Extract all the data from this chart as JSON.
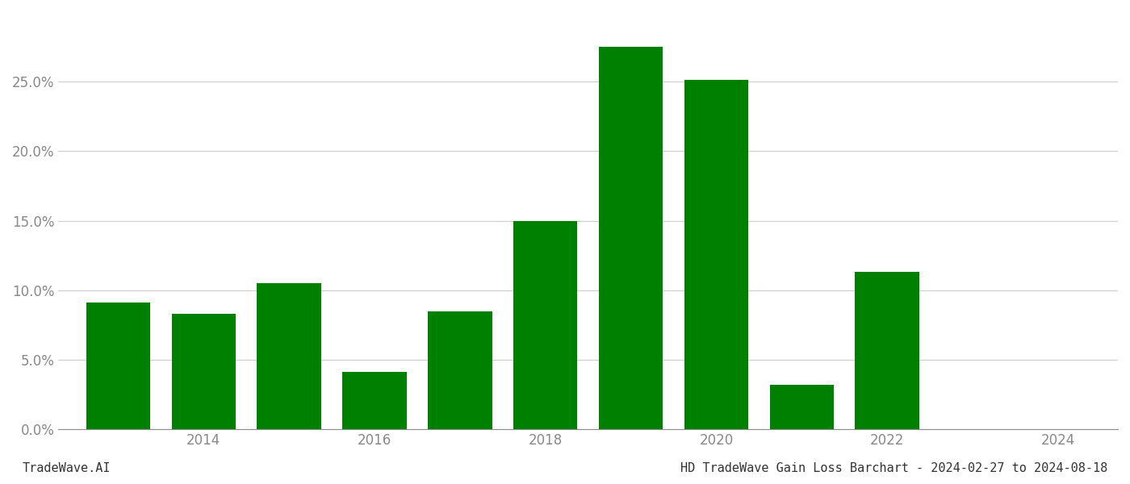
{
  "years": [
    2013,
    2014,
    2015,
    2016,
    2017,
    2018,
    2019,
    2020,
    2021,
    2022,
    2023
  ],
  "values": [
    0.091,
    0.083,
    0.105,
    0.041,
    0.085,
    0.15,
    0.275,
    0.251,
    0.032,
    0.113,
    0.0
  ],
  "bar_color": "#008000",
  "background_color": "#ffffff",
  "title": "HD TradeWave Gain Loss Barchart - 2024-02-27 to 2024-08-18",
  "watermark": "TradeWave.AI",
  "ylim": [
    0,
    0.3
  ],
  "ytick_values": [
    0.0,
    0.05,
    0.1,
    0.15,
    0.2,
    0.25
  ],
  "xtick_positions": [
    2014,
    2016,
    2018,
    2020,
    2022,
    2024
  ],
  "xtick_labels": [
    "2014",
    "2016",
    "2018",
    "2020",
    "2022",
    "2024"
  ],
  "xlim": [
    2012.3,
    2024.7
  ],
  "grid_color": "#cccccc",
  "title_fontsize": 11,
  "watermark_fontsize": 11,
  "axis_label_color": "#888888",
  "bar_width": 0.75
}
